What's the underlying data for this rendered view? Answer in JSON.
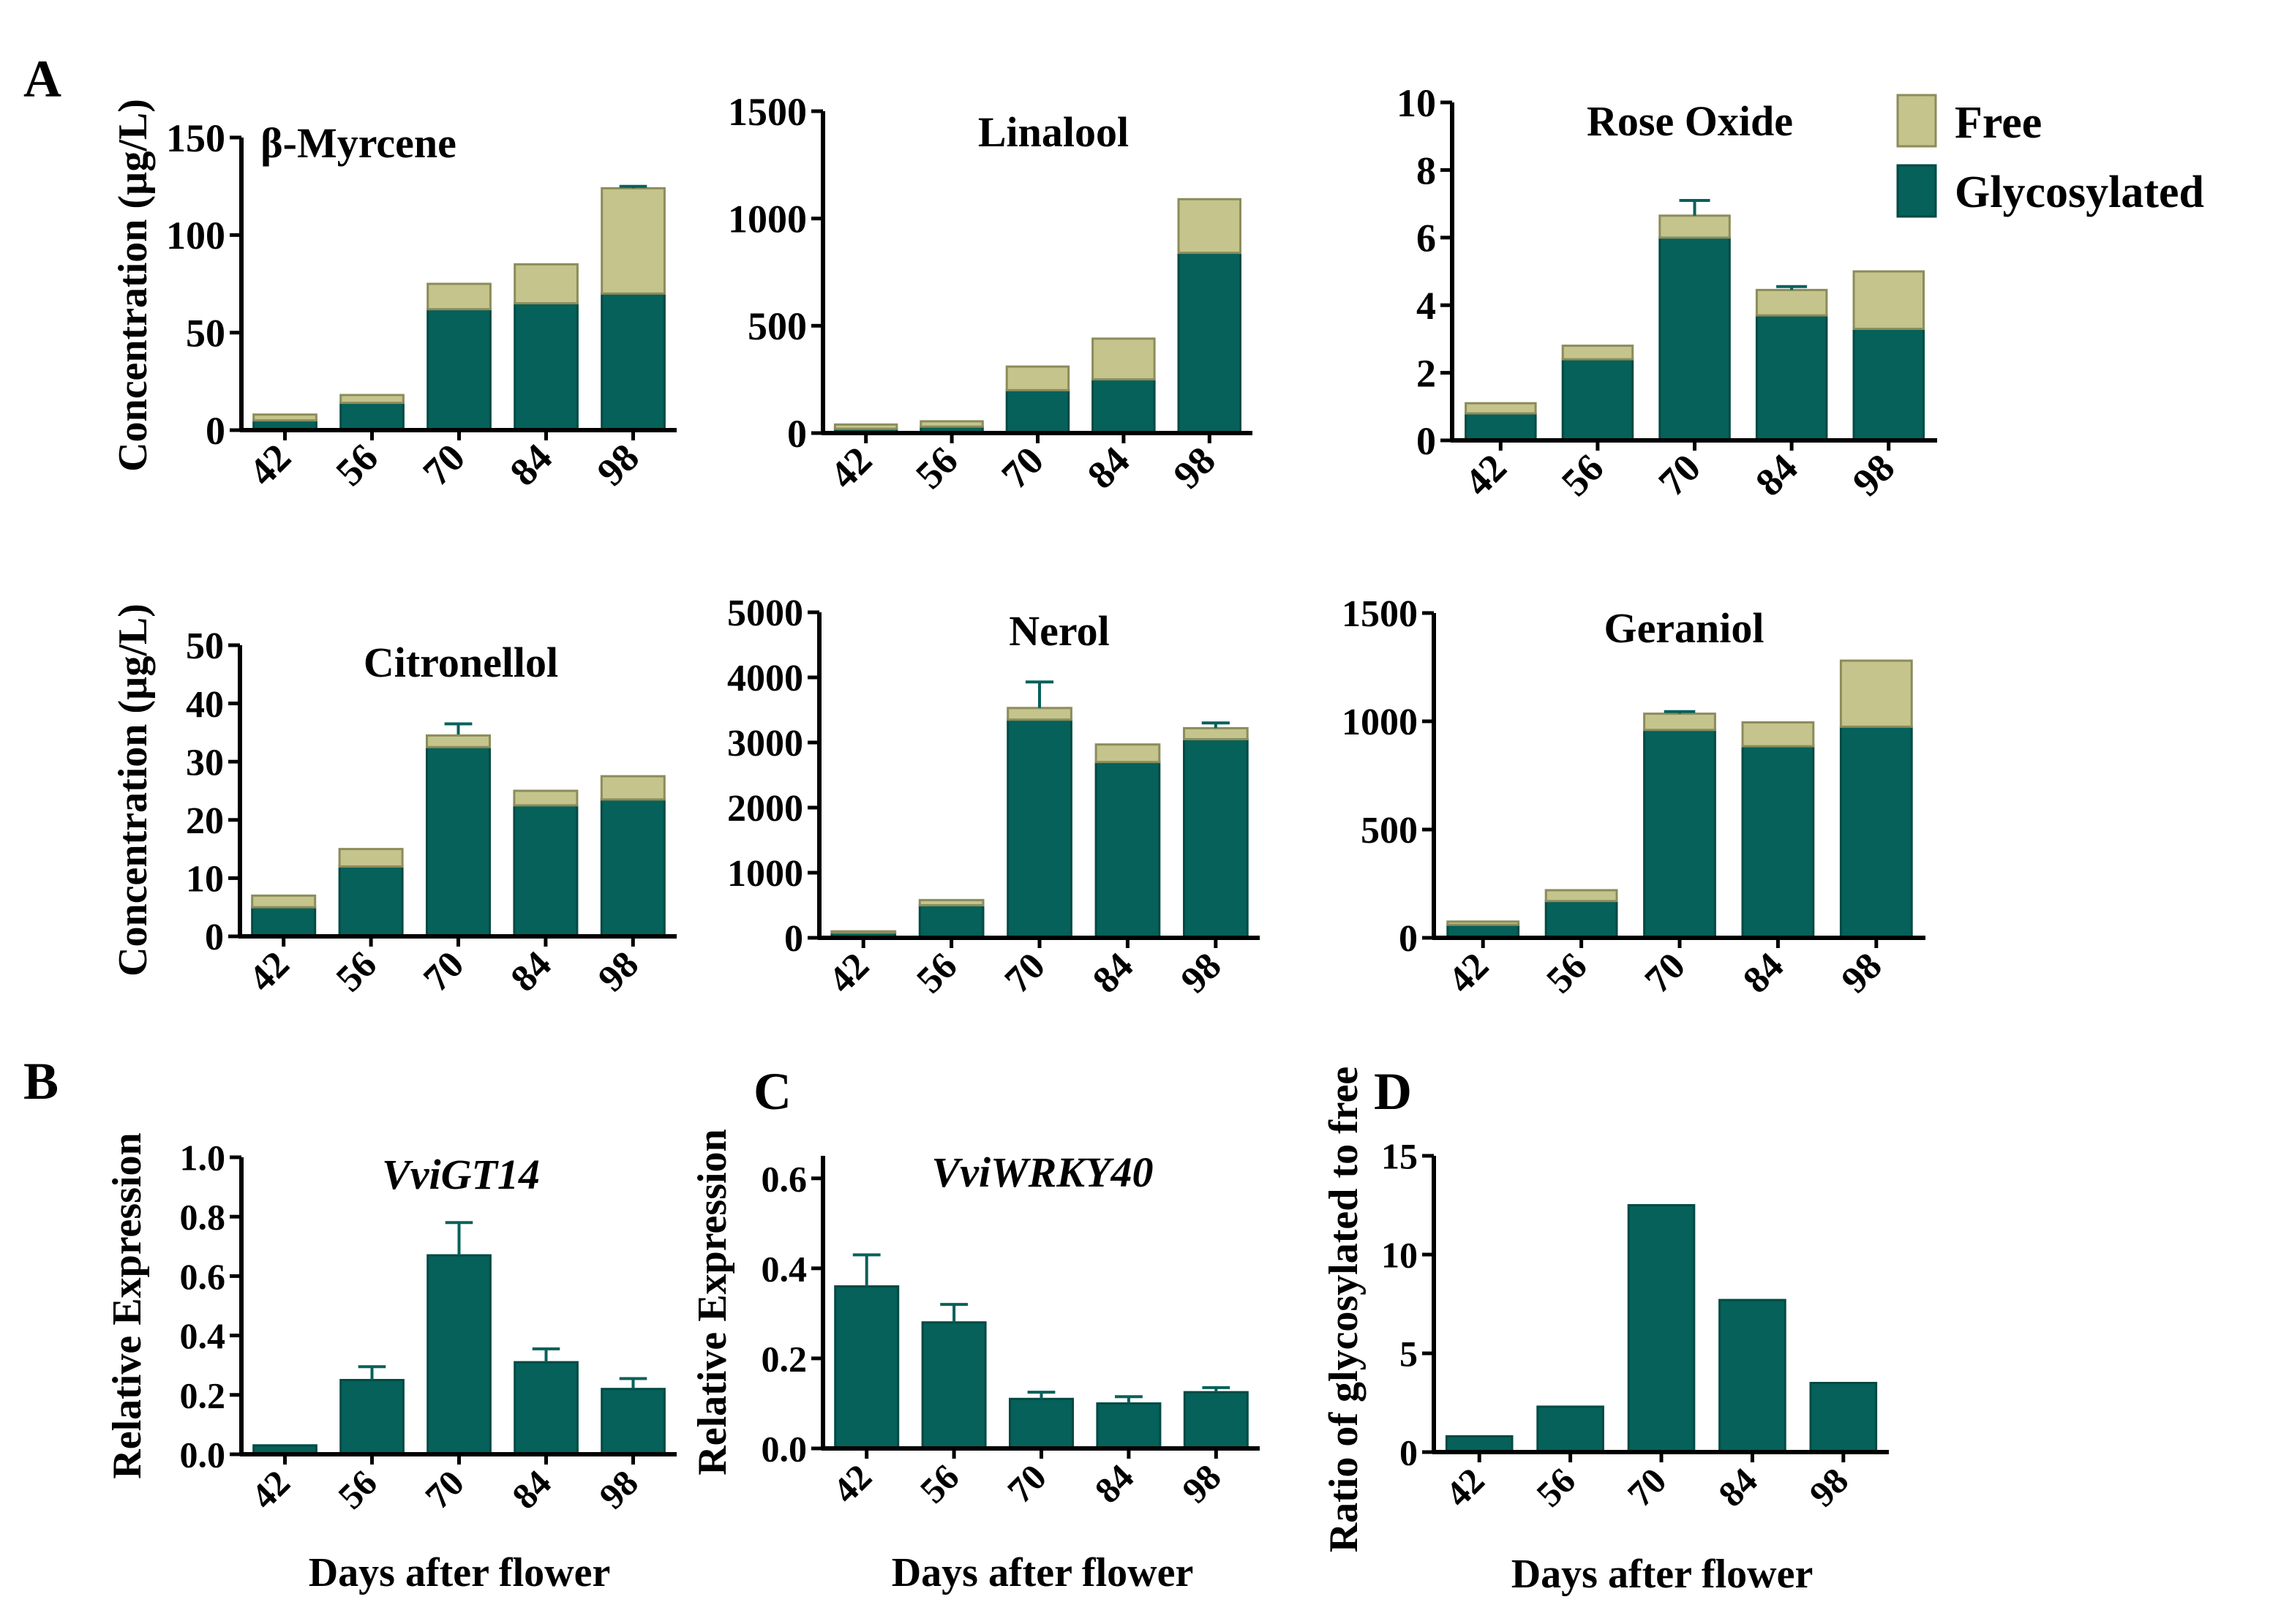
{
  "colors": {
    "free": "#c4c48c",
    "free_edge": "#8c8c5c",
    "glycosylated": "#05615a",
    "glycosylated_edge": "#034a44",
    "axis": "#000000"
  },
  "panel_letters": {
    "a": "A",
    "b": "B",
    "c": "C",
    "d": "D"
  },
  "legend": {
    "free": "Free",
    "glycosylated": "Glycosylated"
  },
  "shared": {
    "concentration_label": "Concentration (µg/L)",
    "expression_label": "Relative Expression",
    "ratio_label": "Ratio of glycosylated to free",
    "days_label": "Days after flower"
  },
  "chart_data": [
    {
      "id": "myrcene",
      "type": "bar",
      "stacked": true,
      "title": "β-Myrcene",
      "ylabel": "Concentration (µg/L)",
      "xlabel": "",
      "categories": [
        "42",
        "56",
        "70",
        "84",
        "98"
      ],
      "ylim": [
        0,
        150
      ],
      "yticks": [
        0,
        50,
        100,
        150
      ],
      "series": [
        {
          "name": "Glycosylated",
          "values": [
            5,
            14,
            62,
            65,
            70
          ],
          "errors": [
            0,
            0,
            6,
            6,
            8
          ]
        },
        {
          "name": "Free",
          "values": [
            3,
            4,
            13,
            20,
            54
          ],
          "errors": [
            0,
            0,
            0,
            0,
            1
          ]
        }
      ]
    },
    {
      "id": "linalool",
      "type": "bar",
      "stacked": true,
      "title": "Linalool",
      "ylabel": "",
      "xlabel": "",
      "categories": [
        "42",
        "56",
        "70",
        "84",
        "98"
      ],
      "ylim": [
        0,
        1500
      ],
      "yticks": [
        0,
        500,
        1000,
        1500
      ],
      "series": [
        {
          "name": "Glycosylated",
          "values": [
            20,
            30,
            200,
            250,
            840
          ],
          "errors": [
            0,
            0,
            30,
            25,
            15
          ]
        },
        {
          "name": "Free",
          "values": [
            20,
            25,
            110,
            190,
            250
          ],
          "errors": [
            0,
            0,
            0,
            0,
            0
          ]
        }
      ]
    },
    {
      "id": "rose_oxide",
      "type": "bar",
      "stacked": true,
      "title": "Rose Oxide",
      "ylabel": "",
      "xlabel": "",
      "categories": [
        "42",
        "56",
        "70",
        "84",
        "98"
      ],
      "ylim": [
        0,
        10
      ],
      "yticks": [
        0,
        2,
        4,
        6,
        8,
        10
      ],
      "series": [
        {
          "name": "Glycosylated",
          "values": [
            0.8,
            2.4,
            6.0,
            3.7,
            3.3
          ],
          "errors": [
            0.05,
            0.1,
            0.4,
            0.2,
            0.1
          ]
        },
        {
          "name": "Free",
          "values": [
            0.3,
            0.4,
            0.65,
            0.75,
            1.7
          ],
          "errors": [
            0,
            0,
            0.45,
            0.1,
            0
          ]
        }
      ]
    },
    {
      "id": "citronellol",
      "type": "bar",
      "stacked": true,
      "title": "Citronellol",
      "ylabel": "Concentration (µg/L)",
      "xlabel": "",
      "categories": [
        "42",
        "56",
        "70",
        "84",
        "98"
      ],
      "ylim": [
        0,
        50
      ],
      "yticks": [
        0,
        10,
        20,
        30,
        40,
        50
      ],
      "series": [
        {
          "name": "Glycosylated",
          "values": [
            5,
            12,
            32.5,
            22.5,
            23.5
          ],
          "errors": [
            0,
            0.4,
            4,
            1.5,
            1.2
          ]
        },
        {
          "name": "Free",
          "values": [
            2,
            3,
            2,
            2.5,
            4
          ],
          "errors": [
            0,
            0,
            0,
            0,
            0
          ]
        }
      ]
    },
    {
      "id": "nerol",
      "type": "bar",
      "stacked": true,
      "title": "Nerol",
      "ylabel": "",
      "xlabel": "",
      "categories": [
        "42",
        "56",
        "70",
        "84",
        "98"
      ],
      "ylim": [
        0,
        5000
      ],
      "yticks": [
        0,
        1000,
        2000,
        3000,
        4000,
        5000
      ],
      "series": [
        {
          "name": "Glycosylated",
          "values": [
            80,
            500,
            3350,
            2700,
            3050
          ],
          "errors": [
            0,
            20,
            50,
            50,
            30
          ]
        },
        {
          "name": "Free",
          "values": [
            20,
            80,
            180,
            270,
            170
          ],
          "errors": [
            0,
            0,
            400,
            0,
            80
          ]
        }
      ]
    },
    {
      "id": "geraniol",
      "type": "bar",
      "stacked": true,
      "title": "Geraniol",
      "ylabel": "",
      "xlabel": "",
      "categories": [
        "42",
        "56",
        "70",
        "84",
        "98"
      ],
      "ylim": [
        0,
        1500
      ],
      "yticks": [
        0,
        500,
        1000,
        1500
      ],
      "series": [
        {
          "name": "Glycosylated",
          "values": [
            60,
            170,
            960,
            885,
            975
          ],
          "errors": [
            0,
            15,
            0,
            30,
            75
          ]
        },
        {
          "name": "Free",
          "values": [
            15,
            50,
            75,
            110,
            305
          ],
          "errors": [
            0,
            0,
            10,
            0,
            0
          ]
        }
      ]
    },
    {
      "id": "vvigt14",
      "type": "bar",
      "stacked": false,
      "title": "VviGT14",
      "ylabel": "Relative Expression",
      "xlabel": "Days after flower",
      "categories": [
        "42",
        "56",
        "70",
        "84",
        "98"
      ],
      "ylim": [
        0,
        1.0
      ],
      "yticks": [
        0.0,
        0.2,
        0.4,
        0.6,
        0.8,
        1.0
      ],
      "series": [
        {
          "name": "Relative Expression",
          "values": [
            0.03,
            0.25,
            0.67,
            0.31,
            0.22
          ],
          "errors": [
            0,
            0.045,
            0.11,
            0.045,
            0.035
          ]
        }
      ]
    },
    {
      "id": "vviwrky40",
      "type": "bar",
      "stacked": false,
      "title": "VviWRKY40",
      "ylabel": "Relative Expression",
      "xlabel": "Days after flower",
      "categories": [
        "42",
        "56",
        "70",
        "84",
        "98"
      ],
      "ylim": [
        0,
        0.65
      ],
      "yticks": [
        0.0,
        0.2,
        0.4,
        0.6
      ],
      "series": [
        {
          "name": "Relative Expression",
          "values": [
            0.36,
            0.28,
            0.11,
            0.1,
            0.125
          ],
          "errors": [
            0.07,
            0.04,
            0.015,
            0.015,
            0.01
          ]
        }
      ]
    },
    {
      "id": "ratio",
      "type": "bar",
      "stacked": false,
      "title": "",
      "ylabel": "Ratio of glycosylated to free",
      "xlabel": "Days after flower",
      "categories": [
        "42",
        "56",
        "70",
        "84",
        "98"
      ],
      "ylim": [
        0,
        15
      ],
      "yticks": [
        0,
        5,
        10,
        15
      ],
      "series": [
        {
          "name": "Ratio",
          "values": [
            0.8,
            2.3,
            12.5,
            7.7,
            3.5
          ],
          "errors": [
            0,
            0,
            0,
            0,
            0
          ]
        }
      ]
    }
  ]
}
